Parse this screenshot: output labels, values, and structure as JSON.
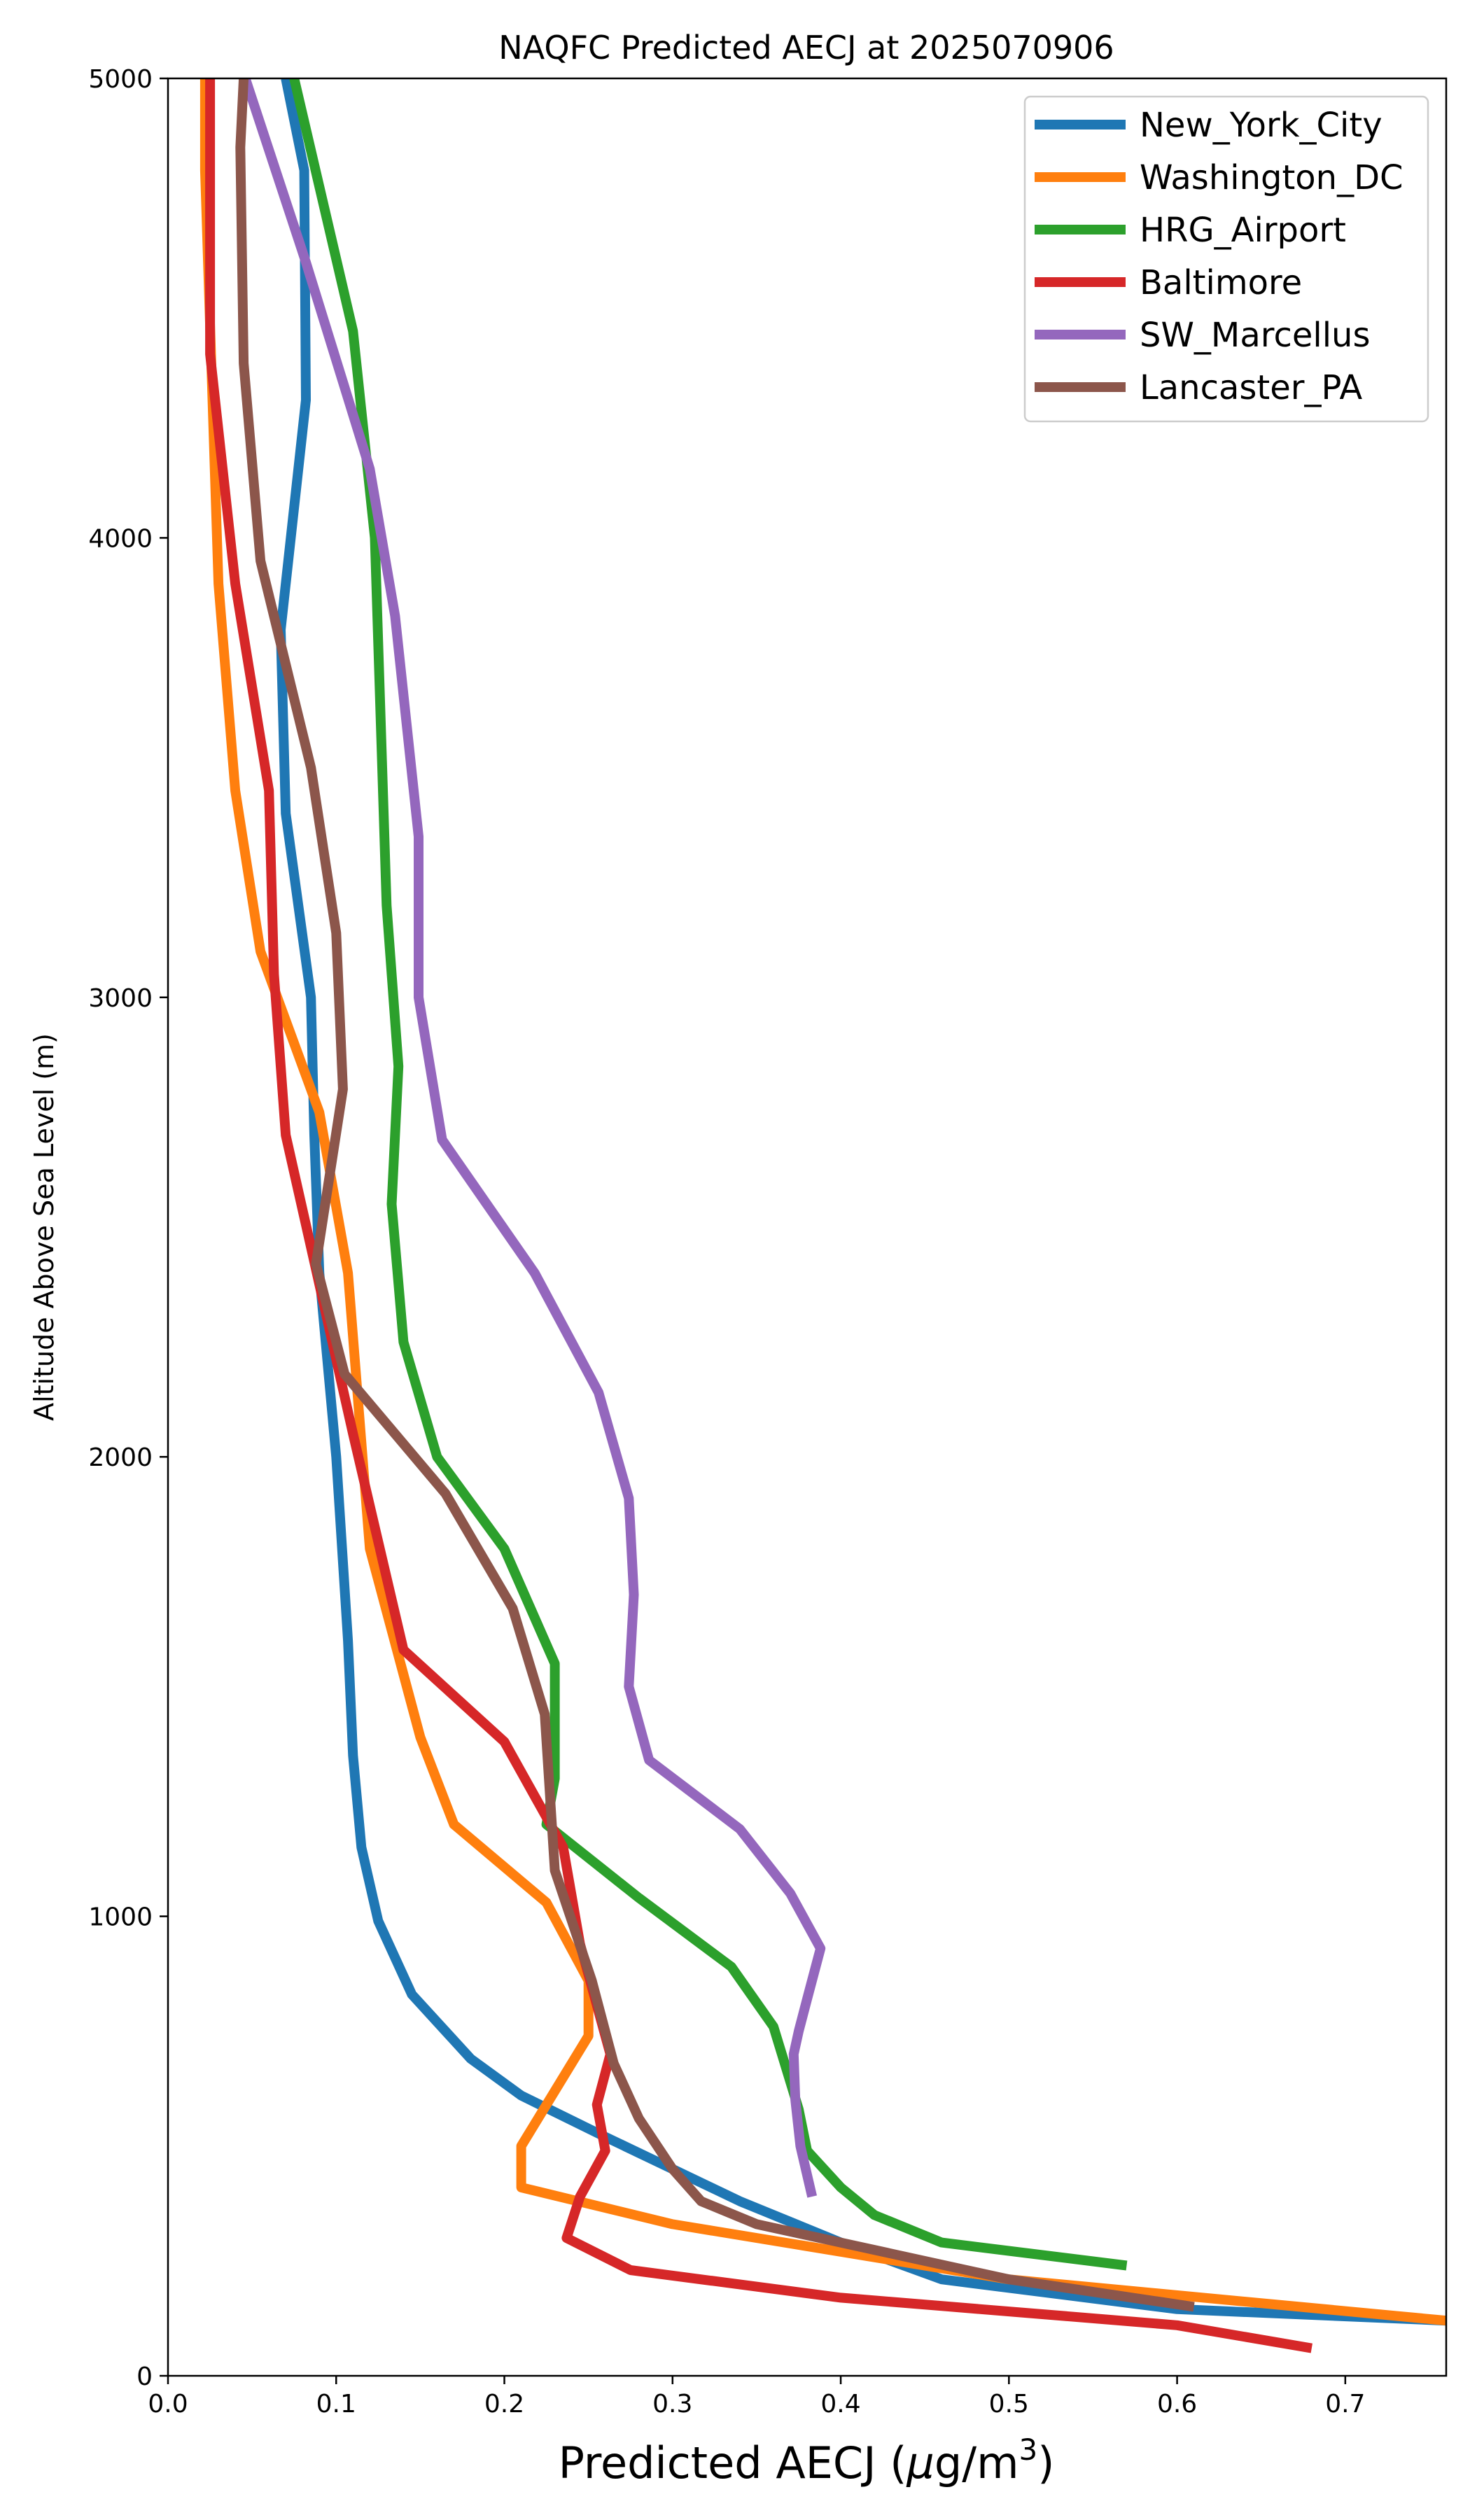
{
  "chart_data": {
    "type": "line",
    "title": "NAQFC Predicted AECJ at 2025070906",
    "xlabel": "Predicted AECJ (μg/m³)",
    "xlabel_main": "Predicted AECJ (",
    "xlabel_mu": "μ",
    "xlabel_unit": "g/m",
    "xlabel_sup": "3",
    "xlabel_close": ")",
    "ylabel": "Altitude Above Sea Level (m)",
    "xlim": [
      0.0,
      0.76
    ],
    "ylim": [
      0,
      5000
    ],
    "xticks": [
      0.0,
      0.1,
      0.2,
      0.3,
      0.4,
      0.5,
      0.6,
      0.7
    ],
    "xtick_labels": [
      "0.0",
      "0.1",
      "0.2",
      "0.3",
      "0.4",
      "0.5",
      "0.6",
      "0.7"
    ],
    "yticks": [
      0,
      1000,
      2000,
      3000,
      4000,
      5000
    ],
    "ytick_labels": [
      "0",
      "1000",
      "2000",
      "3000",
      "4000",
      "5000"
    ],
    "grid": false,
    "legend_position": "top-right",
    "series": [
      {
        "name": "New_York_City",
        "color": "#1f77b4",
        "points": [
          [
            0.76,
            120
          ],
          [
            0.6,
            145
          ],
          [
            0.46,
            210
          ],
          [
            0.4,
            290
          ],
          [
            0.34,
            380
          ],
          [
            0.26,
            520
          ],
          [
            0.21,
            610
          ],
          [
            0.18,
            690
          ],
          [
            0.145,
            830
          ],
          [
            0.125,
            990
          ],
          [
            0.115,
            1150
          ],
          [
            0.11,
            1350
          ],
          [
            0.107,
            1600
          ],
          [
            0.1,
            2000
          ],
          [
            0.09,
            2400
          ],
          [
            0.087,
            2700
          ],
          [
            0.085,
            3000
          ],
          [
            0.07,
            3400
          ],
          [
            0.067,
            3800
          ],
          [
            0.082,
            4300
          ],
          [
            0.081,
            4800
          ],
          [
            0.07,
            5000
          ]
        ]
      },
      {
        "name": "Washington_DC",
        "color": "#ff7f0e",
        "points": [
          [
            0.76,
            120
          ],
          [
            0.5,
            210
          ],
          [
            0.3,
            330
          ],
          [
            0.21,
            410
          ],
          [
            0.21,
            500
          ],
          [
            0.25,
            740
          ],
          [
            0.25,
            860
          ],
          [
            0.225,
            1030
          ],
          [
            0.17,
            1200
          ],
          [
            0.15,
            1390
          ],
          [
            0.12,
            1800
          ],
          [
            0.107,
            2400
          ],
          [
            0.09,
            2750
          ],
          [
            0.055,
            3100
          ],
          [
            0.04,
            3450
          ],
          [
            0.03,
            3900
          ],
          [
            0.022,
            4800
          ],
          [
            0.022,
            5000
          ]
        ]
      },
      {
        "name": "HRG_Airport",
        "color": "#2ca02c",
        "points": [
          [
            0.57,
            240
          ],
          [
            0.46,
            290
          ],
          [
            0.42,
            350
          ],
          [
            0.4,
            410
          ],
          [
            0.38,
            490
          ],
          [
            0.375,
            580
          ],
          [
            0.36,
            760
          ],
          [
            0.335,
            890
          ],
          [
            0.28,
            1040
          ],
          [
            0.225,
            1200
          ],
          [
            0.23,
            1300
          ],
          [
            0.23,
            1550
          ],
          [
            0.2,
            1800
          ],
          [
            0.16,
            2000
          ],
          [
            0.14,
            2250
          ],
          [
            0.133,
            2550
          ],
          [
            0.137,
            2850
          ],
          [
            0.13,
            3200
          ],
          [
            0.123,
            4000
          ],
          [
            0.11,
            4450
          ],
          [
            0.075,
            5000
          ]
        ]
      },
      {
        "name": "Baltimore",
        "color": "#d62728",
        "points": [
          [
            0.68,
            60
          ],
          [
            0.6,
            110
          ],
          [
            0.4,
            170
          ],
          [
            0.275,
            230
          ],
          [
            0.237,
            300
          ],
          [
            0.245,
            390
          ],
          [
            0.26,
            490
          ],
          [
            0.255,
            590
          ],
          [
            0.263,
            700
          ],
          [
            0.245,
            940
          ],
          [
            0.235,
            1150
          ],
          [
            0.2,
            1380
          ],
          [
            0.14,
            1580
          ],
          [
            0.11,
            2050
          ],
          [
            0.07,
            2700
          ],
          [
            0.063,
            3050
          ],
          [
            0.06,
            3450
          ],
          [
            0.04,
            3900
          ],
          [
            0.025,
            4400
          ],
          [
            0.025,
            5000
          ]
        ]
      },
      {
        "name": "SW_Marcellus",
        "color": "#9467bd",
        "points": [
          [
            0.383,
            390
          ],
          [
            0.376,
            500
          ],
          [
            0.373,
            600
          ],
          [
            0.372,
            700
          ],
          [
            0.375,
            750
          ],
          [
            0.38,
            820
          ],
          [
            0.388,
            930
          ],
          [
            0.37,
            1050
          ],
          [
            0.34,
            1190
          ],
          [
            0.286,
            1340
          ],
          [
            0.274,
            1500
          ],
          [
            0.277,
            1700
          ],
          [
            0.274,
            1910
          ],
          [
            0.256,
            2140
          ],
          [
            0.218,
            2400
          ],
          [
            0.163,
            2690
          ],
          [
            0.149,
            3000
          ],
          [
            0.149,
            3350
          ],
          [
            0.135,
            3830
          ],
          [
            0.12,
            4150
          ],
          [
            0.082,
            4600
          ],
          [
            0.046,
            5000
          ]
        ]
      },
      {
        "name": "Lancaster_PA",
        "color": "#8c564b",
        "points": [
          [
            0.61,
            150
          ],
          [
            0.5,
            210
          ],
          [
            0.35,
            330
          ],
          [
            0.317,
            380
          ],
          [
            0.3,
            450
          ],
          [
            0.28,
            560
          ],
          [
            0.265,
            680
          ],
          [
            0.252,
            860
          ],
          [
            0.23,
            1100
          ],
          [
            0.224,
            1440
          ],
          [
            0.205,
            1670
          ],
          [
            0.165,
            1920
          ],
          [
            0.105,
            2180
          ],
          [
            0.088,
            2420
          ],
          [
            0.104,
            2800
          ],
          [
            0.1,
            3140
          ],
          [
            0.085,
            3500
          ],
          [
            0.055,
            3950
          ],
          [
            0.045,
            4380
          ],
          [
            0.043,
            4850
          ],
          [
            0.045,
            5000
          ]
        ]
      }
    ]
  }
}
